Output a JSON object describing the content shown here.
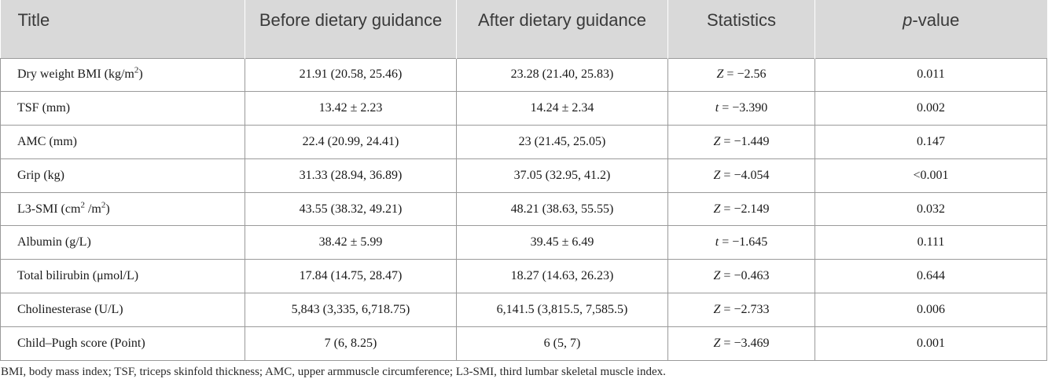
{
  "table": {
    "headers": {
      "title": "Title",
      "before": "Before dietary guidance",
      "after": "After dietary guidance",
      "statistics": "Statistics",
      "p_prefix": "p",
      "p_suffix": "-value"
    },
    "rows": [
      {
        "label_pre": "Dry weight BMI (kg/m",
        "sup1": "2",
        "label_mid": ")",
        "sup2": "",
        "label_post": "",
        "before": "21.91 (20.58, 25.46)",
        "after": "23.28 (21.40, 25.83)",
        "stat_var": "Z",
        "stat_rest": " = −2.56",
        "p": "0.011"
      },
      {
        "label_pre": "TSF (mm)",
        "sup1": "",
        "label_mid": "",
        "sup2": "",
        "label_post": "",
        "before": "13.42 ± 2.23",
        "after": "14.24 ± 2.34",
        "stat_var": "t",
        "stat_rest": " = −3.390",
        "p": "0.002"
      },
      {
        "label_pre": "AMC (mm)",
        "sup1": "",
        "label_mid": "",
        "sup2": "",
        "label_post": "",
        "before": "22.4 (20.99, 24.41)",
        "after": "23 (21.45, 25.05)",
        "stat_var": "Z",
        "stat_rest": " = −1.449",
        "p": "0.147"
      },
      {
        "label_pre": "Grip (kg)",
        "sup1": "",
        "label_mid": "",
        "sup2": "",
        "label_post": "",
        "before": "31.33 (28.94, 36.89)",
        "after": "37.05 (32.95, 41.2)",
        "stat_var": "Z",
        "stat_rest": " = −4.054",
        "p": "<0.001"
      },
      {
        "label_pre": "L3-SMI (cm",
        "sup1": "2",
        "label_mid": " /m",
        "sup2": "2",
        "label_post": ")",
        "before": "43.55 (38.32, 49.21)",
        "after": "48.21 (38.63, 55.55)",
        "stat_var": "Z",
        "stat_rest": " = −2.149",
        "p": "0.032"
      },
      {
        "label_pre": "Albumin (g/L)",
        "sup1": "",
        "label_mid": "",
        "sup2": "",
        "label_post": "",
        "before": "38.42 ± 5.99",
        "after": "39.45 ± 6.49",
        "stat_var": "t",
        "stat_rest": " = −1.645",
        "p": "0.111"
      },
      {
        "label_pre": "Total bilirubin (μmol/L)",
        "sup1": "",
        "label_mid": "",
        "sup2": "",
        "label_post": "",
        "before": "17.84 (14.75, 28.47)",
        "after": "18.27 (14.63, 26.23)",
        "stat_var": "Z",
        "stat_rest": " = −0.463",
        "p": "0.644"
      },
      {
        "label_pre": "Cholinesterase (U/L)",
        "sup1": "",
        "label_mid": "",
        "sup2": "",
        "label_post": "",
        "before": "5,843 (3,335, 6,718.75)",
        "after": "6,141.5 (3,815.5, 7,585.5)",
        "stat_var": "Z",
        "stat_rest": " = −2.733",
        "p": "0.006"
      },
      {
        "label_pre": "Child–Pugh score (Point)",
        "sup1": "",
        "label_mid": "",
        "sup2": "",
        "label_post": "",
        "before": "7 (6, 8.25)",
        "after": "6 (5, 7)",
        "stat_var": "Z",
        "stat_rest": " = −3.469",
        "p": "0.001"
      }
    ]
  },
  "footnote": "BMI, body mass index; TSF, triceps skinfold thickness; AMC, upper armmuscle circumference; L3-SMI, third lumbar skeletal muscle index."
}
